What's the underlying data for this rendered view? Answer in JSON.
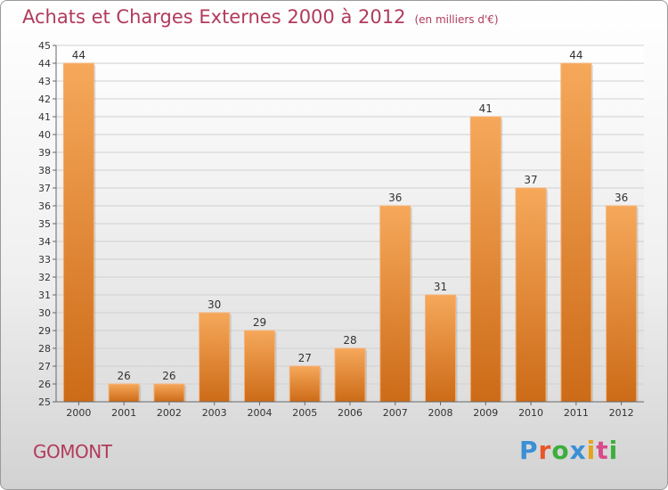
{
  "header": {
    "title": "Achats et Charges Externes 2000 à 2012",
    "subtitle": "(en milliers d'€)"
  },
  "commune": "GOMONT",
  "logo": {
    "text": "Proxiti",
    "letters": [
      "P",
      "r",
      "o",
      "x",
      "i",
      "t",
      "i"
    ],
    "colors": [
      "#3b8fd6",
      "#e8552b",
      "#3cae3c",
      "#3b8fd6",
      "#e8a21a",
      "#d94a8c",
      "#3cae3c"
    ]
  },
  "colors": {
    "bar_top": "#f6a85a",
    "bar_bottom": "#cc6b18",
    "title": "#b13a5c"
  },
  "chart_data": {
    "type": "bar",
    "title": "Achats et Charges Externes 2000 à 2012",
    "subtitle": "(en milliers d'€)",
    "categories": [
      "2000",
      "2001",
      "2002",
      "2003",
      "2004",
      "2005",
      "2006",
      "2007",
      "2008",
      "2009",
      "2010",
      "2011",
      "2012"
    ],
    "values": [
      44,
      26,
      26,
      30,
      29,
      27,
      28,
      36,
      31,
      41,
      37,
      44,
      36
    ],
    "ylim": [
      25,
      45
    ],
    "yticks": [
      25,
      26,
      27,
      28,
      29,
      30,
      31,
      32,
      33,
      34,
      35,
      36,
      37,
      38,
      39,
      40,
      41,
      42,
      43,
      44,
      45
    ],
    "xlabel": "",
    "ylabel": "",
    "grid": true,
    "legend": "none"
  }
}
